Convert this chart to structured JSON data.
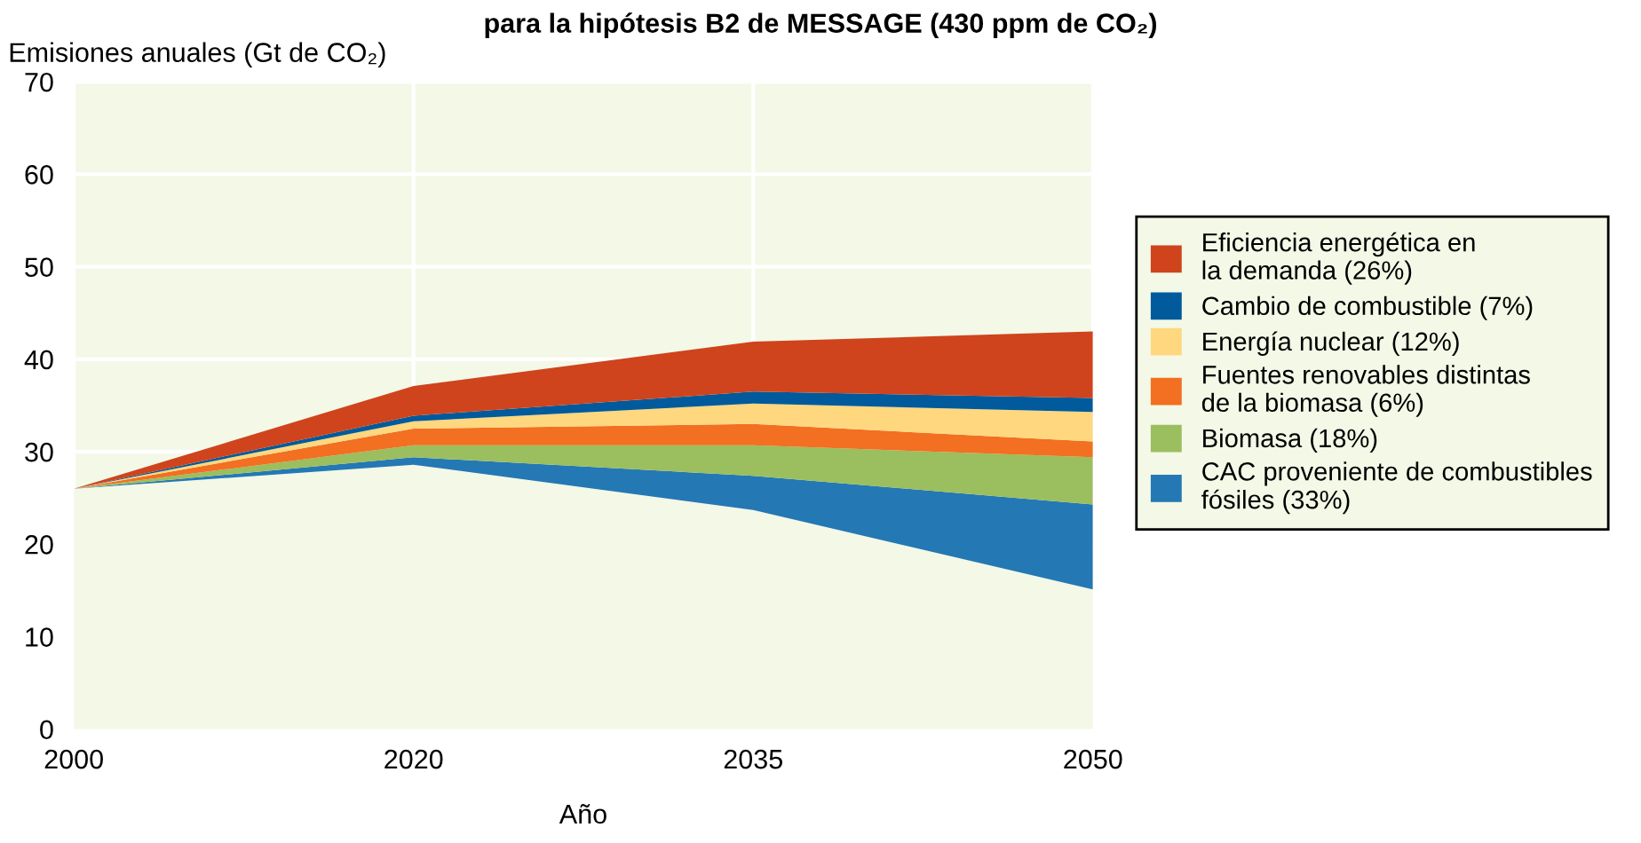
{
  "chart_data": {
    "type": "area",
    "stacked": true,
    "title": "para la hipótesis B2 de MESSAGE (430 ppm de CO₂)",
    "ylabel": "Emisiones anuales (Gt de CO₂)",
    "xlabel": "Año",
    "categories": [
      "2000",
      "2020",
      "2035",
      "2050"
    ],
    "series": [
      {
        "color": "#f3f8e7",
        "values": [
          26,
          28.6,
          23.7,
          15.1
        ]
      },
      {
        "name": "CAC proveniente de combustibles\nfósiles (33%)",
        "color": "#2478b4",
        "values": [
          0,
          0.8,
          3.7,
          9.2
        ]
      },
      {
        "name": "Biomasa (18%)",
        "color": "#9bbe5f",
        "values": [
          0,
          1.3,
          3.3,
          5.1
        ]
      },
      {
        "name": "Fuentes renovables distintas\nde la biomasa (6%)",
        "color": "#f36f21",
        "values": [
          0,
          1.8,
          2.3,
          1.7
        ]
      },
      {
        "name": "Energía nuclear (12%)",
        "color": "#ffd77e",
        "values": [
          0,
          0.8,
          2.2,
          3.2
        ]
      },
      {
        "name": "Cambio de combustible (7%)",
        "color": "#005a9c",
        "values": [
          0,
          0.6,
          1.3,
          1.5
        ]
      },
      {
        "name": "Eficiencia energética en\nla demanda (26%)",
        "color": "#cf441c",
        "values": [
          0,
          3.2,
          5.4,
          7.2
        ]
      }
    ],
    "ylim": [
      0,
      70
    ],
    "yticks": [
      0,
      10,
      20,
      30,
      40,
      50,
      60,
      70
    ],
    "grid": true,
    "legend": "right"
  }
}
